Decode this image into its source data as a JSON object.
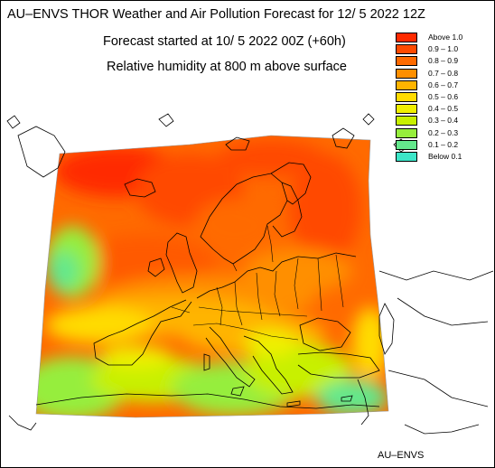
{
  "header": {
    "title": "AU–ENVS THOR Weather and Air Pollution Forecast for 12/ 5 2022  12Z",
    "forecast_start": "Forecast started at 10/ 5 2022  00Z (+60h)",
    "variable": "Relative humidity at 800 m above surface"
  },
  "legend": {
    "items": [
      {
        "label": "Above   1.0",
        "color": "#ff2a00"
      },
      {
        "label": "0.9 – 1.0",
        "color": "#ff4a00"
      },
      {
        "label": "0.8 – 0.9",
        "color": "#ff6a00"
      },
      {
        "label": "0.7 – 0.8",
        "color": "#ff8f00"
      },
      {
        "label": "0.6 – 0.7",
        "color": "#ffb400"
      },
      {
        "label": "0.5 – 0.6",
        "color": "#ffdc00"
      },
      {
        "label": "0.4 – 0.5",
        "color": "#f0f000"
      },
      {
        "label": "0.3 – 0.4",
        "color": "#c8f000"
      },
      {
        "label": "0.2 – 0.3",
        "color": "#96ee3c"
      },
      {
        "label": "0.1 – 0.2",
        "color": "#64e88c"
      },
      {
        "label": "Below   0.1",
        "color": "#3ce6c8"
      }
    ]
  },
  "footer": {
    "credit": "AU–ENVS"
  }
}
